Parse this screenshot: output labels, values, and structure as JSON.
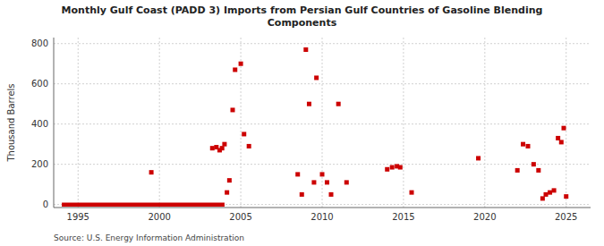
{
  "chart_data": {
    "type": "scatter",
    "title": "Monthly Gulf Coast (PADD 3) Imports from Persian Gulf Countries of Gasoline Blending\nComponents",
    "ylabel": "Thousand Barrels",
    "annotations": [
      "Source: U.S. Energy Information Administration"
    ],
    "xlim": [
      1993.5,
      2026.5
    ],
    "ylim": [
      -15,
      830
    ],
    "xticks": [
      1995,
      2000,
      2005,
      2010,
      2015,
      2020,
      2025
    ],
    "yticks": [
      0,
      200,
      400,
      600,
      800
    ],
    "grid": true,
    "series": [
      {
        "type": "line",
        "color": "#cc0000",
        "line_style": "solid",
        "x": [
          1994.0,
          2004.0
        ],
        "values": [
          0,
          0
        ]
      },
      {
        "type": "scatter",
        "color": "#cc0000",
        "marker": "square",
        "x": [
          1999.5,
          2003.25,
          2003.5,
          2003.7,
          2003.85,
          2004.0,
          2004.15,
          2004.3,
          2004.5,
          2004.65,
          2005.0,
          2005.2,
          2005.5,
          2008.5,
          2008.75,
          2009.0,
          2009.2,
          2009.5,
          2009.65,
          2010.0,
          2010.3,
          2010.55,
          2011.0,
          2011.5,
          2014.0,
          2014.3,
          2014.6,
          2014.8,
          2015.5,
          2019.6,
          2022.0,
          2022.35,
          2022.65,
          2023.0,
          2023.3,
          2023.55,
          2023.75,
          2024.0,
          2024.25,
          2024.5,
          2024.7,
          2024.85,
          2025.0
        ],
        "values": [
          160,
          280,
          285,
          270,
          280,
          300,
          60,
          120,
          470,
          670,
          700,
          350,
          290,
          150,
          50,
          770,
          500,
          110,
          630,
          150,
          110,
          50,
          500,
          110,
          175,
          185,
          190,
          185,
          60,
          230,
          170,
          300,
          290,
          200,
          170,
          30,
          50,
          60,
          70,
          330,
          310,
          380,
          40
        ]
      }
    ]
  }
}
